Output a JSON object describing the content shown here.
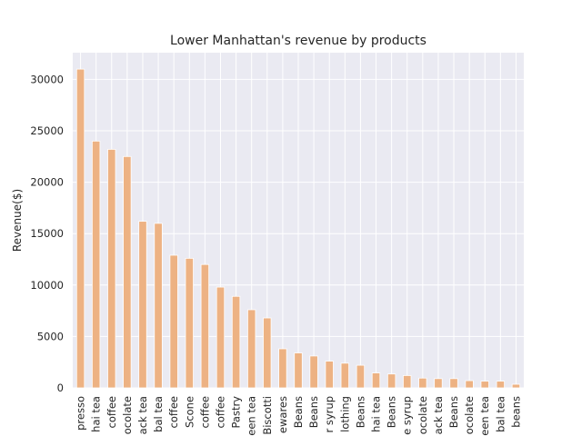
{
  "chart_data": {
    "type": "bar",
    "title": "Lower Manhattan's revenue by products",
    "xlabel": "",
    "ylabel": "Revenue($)",
    "ylim": [
      0,
      32600
    ],
    "yticks": [
      0,
      5000,
      10000,
      15000,
      20000,
      25000,
      30000
    ],
    "grid": true,
    "bar_color": "#edb283",
    "background_color": "#eaeaf2",
    "grid_color": "#ffffff",
    "categories": [
      "presso",
      "hai tea",
      "coffee",
      "ocolate",
      "ack tea",
      "bal tea",
      "coffee",
      "Scone",
      "coffee",
      "coffee",
      "Pastry",
      "een tea",
      "Biscotti",
      "ewares",
      "Beans",
      "Beans",
      "r syrup",
      "lothing",
      "Beans",
      "hai tea",
      "Beans",
      "e syrup",
      "ocolate",
      "ack tea",
      "Beans",
      "ocolate",
      "een tea",
      "bal tea",
      "beans"
    ],
    "values": [
      31000,
      24000,
      23200,
      22500,
      16200,
      16000,
      12900,
      12600,
      12000,
      9800,
      8900,
      7600,
      6800,
      3800,
      3400,
      3100,
      2600,
      2400,
      2200,
      1450,
      1350,
      1200,
      950,
      900,
      900,
      700,
      650,
      650,
      350
    ]
  }
}
